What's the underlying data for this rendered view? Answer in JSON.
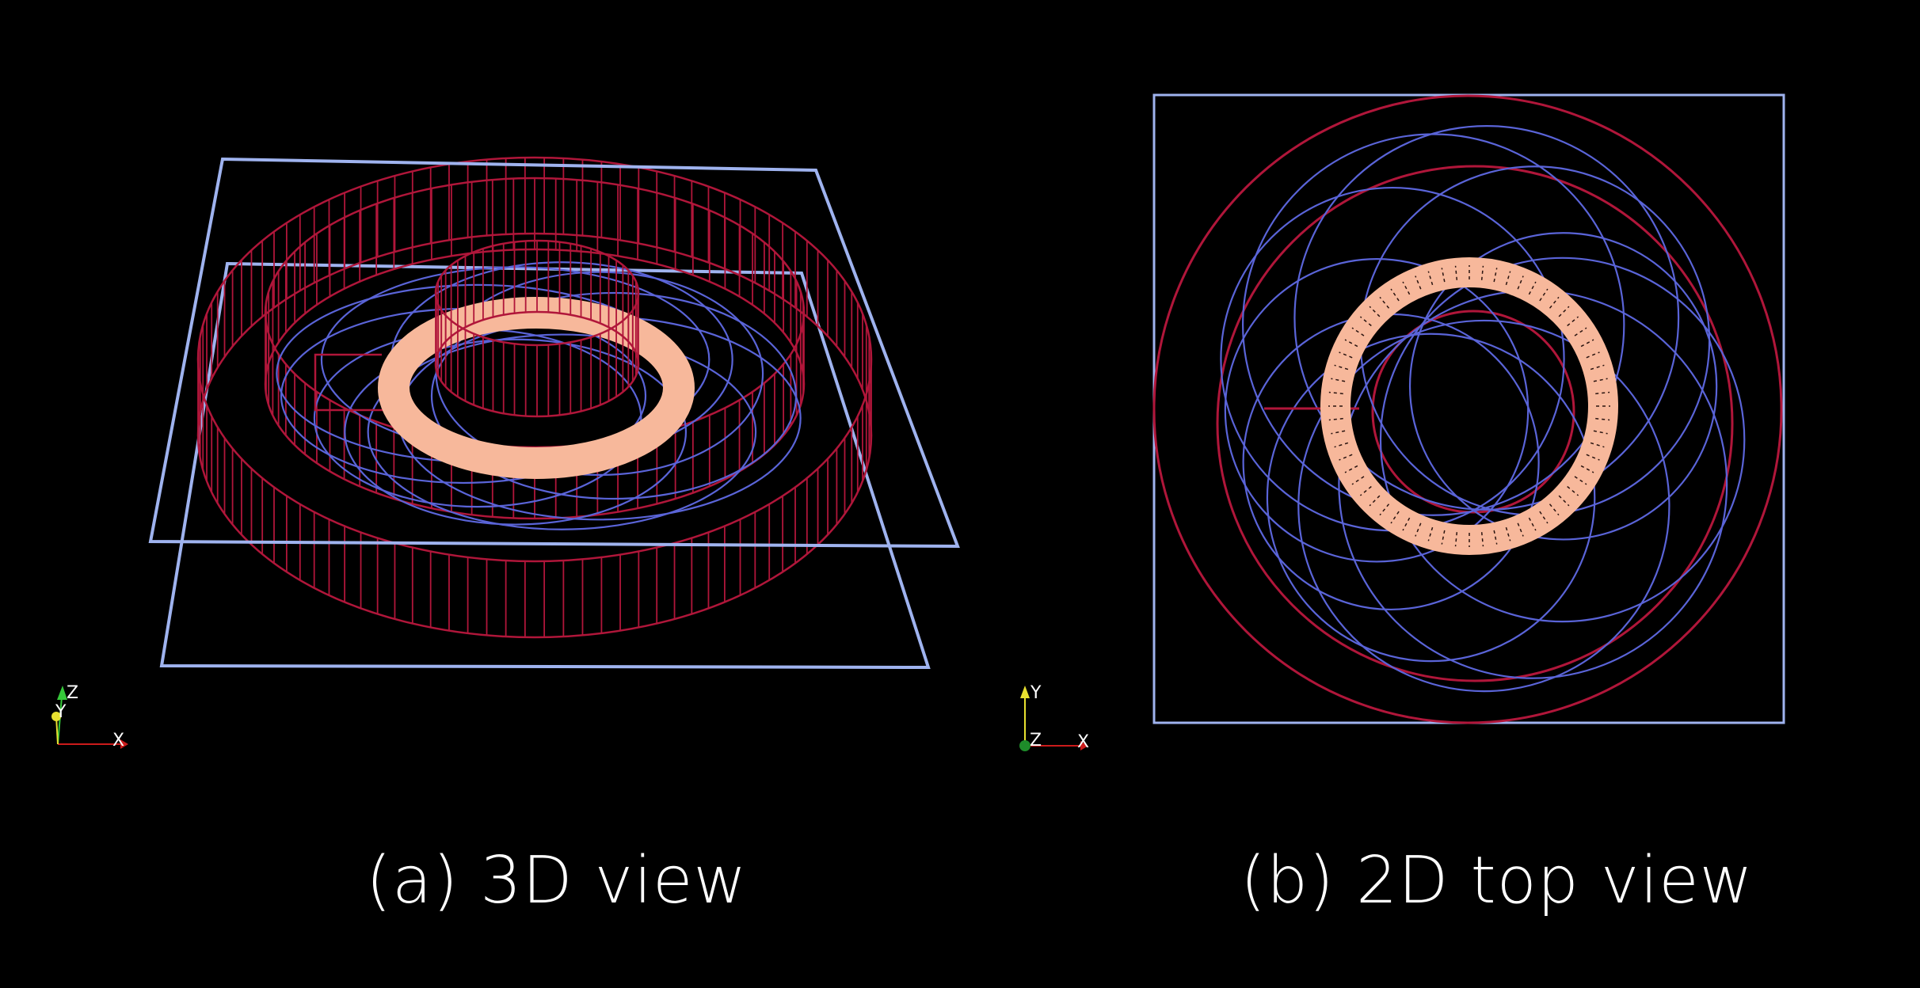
{
  "captions": {
    "view_3d": "(a) 3D view",
    "view_2d": "(b) 2D top view"
  },
  "triad_3d": {
    "up": "Z",
    "depth": "Y",
    "right": "X"
  },
  "triad_2d": {
    "up": "Y",
    "center": "Z",
    "right": "X"
  },
  "colors": {
    "background": "#000000",
    "domain_box": "#9fb3ef",
    "red_cylinders": "#b0163a",
    "blue_orbits": "#5a64d8",
    "annulus": "#f7b89b",
    "annulus_ticks": "#2a1410",
    "axis_z_green": "#36c93a",
    "axis_y_yellow": "#e8e030",
    "axis_x_red": "#cc1b1b"
  }
}
